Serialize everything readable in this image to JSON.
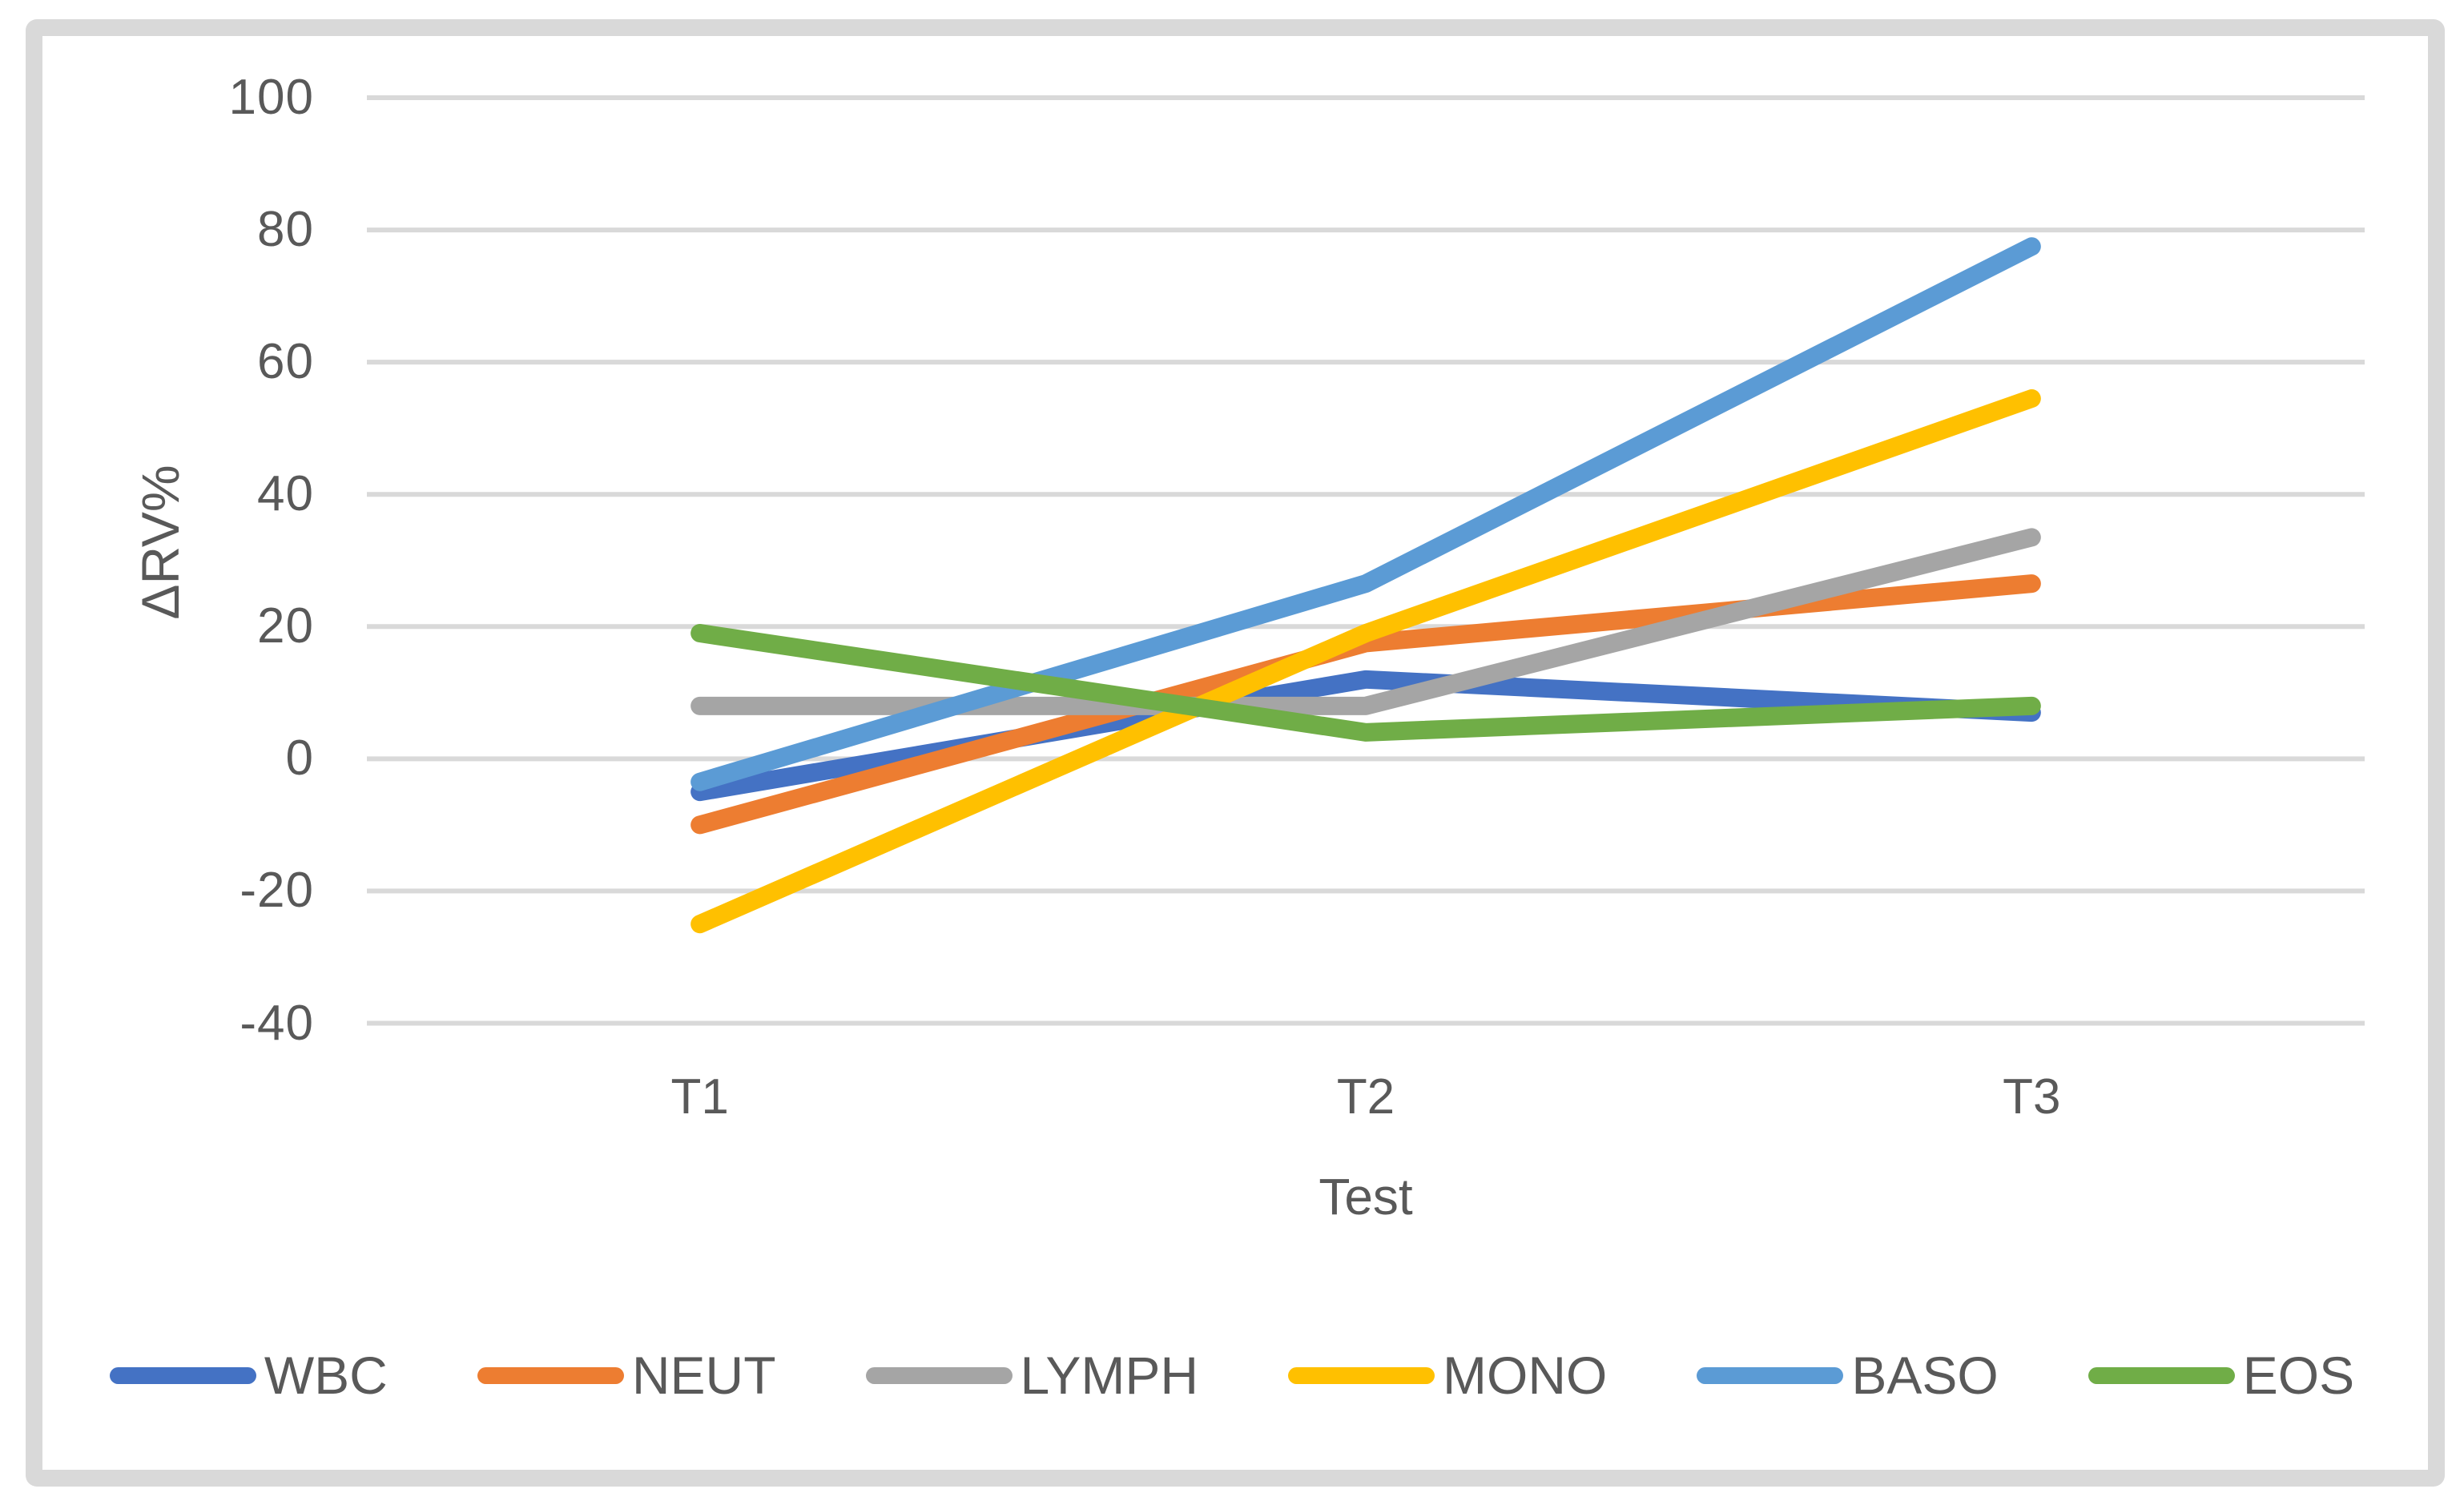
{
  "figure": {
    "kind": "excel-style line chart",
    "background": "#ffffff",
    "frame_color": "#D9D9D9",
    "gridline_color": "#D9D9D9",
    "text_color": "#595959"
  },
  "chart_data": {
    "type": "line",
    "title": "",
    "xlabel": "Test",
    "ylabel": "ΔRV%",
    "categories": [
      "T1",
      "T2",
      "T3"
    ],
    "series": [
      {
        "name": "WBC",
        "color": "#4472C4",
        "values": [
          -5,
          12,
          7
        ]
      },
      {
        "name": "NEUT",
        "color": "#ED7D31",
        "values": [
          -10,
          17.5,
          26.5
        ]
      },
      {
        "name": "LYMPH",
        "color": "#A5A5A5",
        "values": [
          8,
          8,
          33.5
        ]
      },
      {
        "name": "MONO",
        "color": "#FFC000",
        "values": [
          -25,
          19,
          54.5
        ]
      },
      {
        "name": "BASO",
        "color": "#5B9BD5",
        "values": [
          -3.5,
          26.5,
          77.5
        ]
      },
      {
        "name": "EOS",
        "color": "#70AD47",
        "values": [
          19,
          4,
          8
        ]
      }
    ],
    "ylim": [
      -40,
      100
    ],
    "y_ticks": [
      100,
      80,
      60,
      40,
      20,
      0,
      -20,
      -40
    ],
    "grid": "horizontal",
    "legend_position": "bottom"
  }
}
